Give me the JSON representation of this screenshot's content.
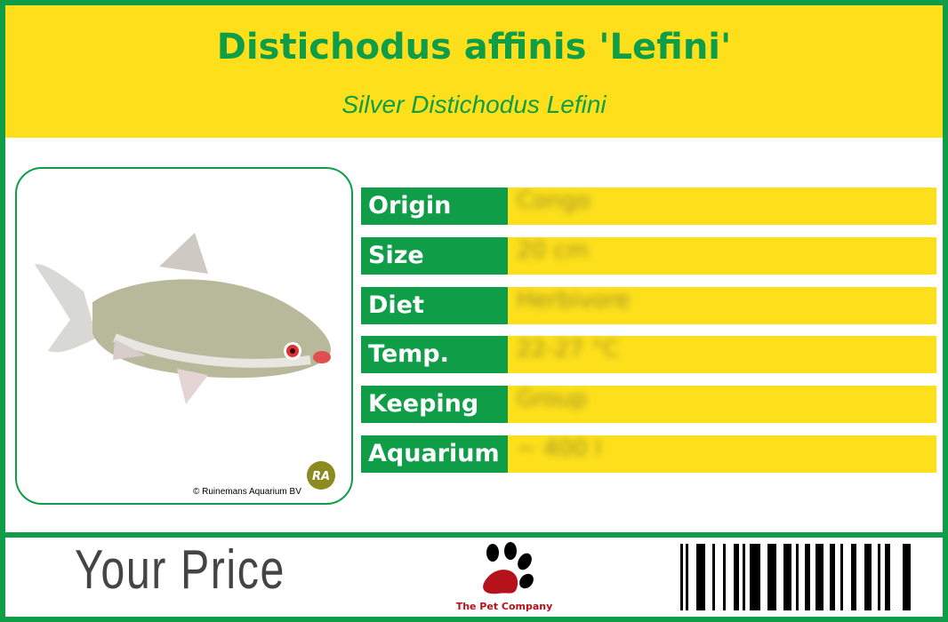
{
  "header": {
    "title": "Distichodus affinis 'Lefini'",
    "subtitle": "Silver Distichodus Lefini"
  },
  "photo": {
    "credit": "© Ruinemans Aquarium BV",
    "badge": "RA"
  },
  "specs": [
    {
      "label": "Origin",
      "value": "Congo"
    },
    {
      "label": "Size",
      "value": "20 cm"
    },
    {
      "label": "Diet",
      "value": "Herbivore"
    },
    {
      "label": "Temp.",
      "value": "22-27 °C"
    },
    {
      "label": "Keeping",
      "value": "Group"
    },
    {
      "label": "Aquarium",
      "value": "~ 400 l"
    }
  ],
  "footer": {
    "price_label": "Your Price",
    "brand": "The Pet Company"
  },
  "colors": {
    "green": "#109d48",
    "yellow": "#fde01b",
    "brand_red": "#b5121b"
  }
}
